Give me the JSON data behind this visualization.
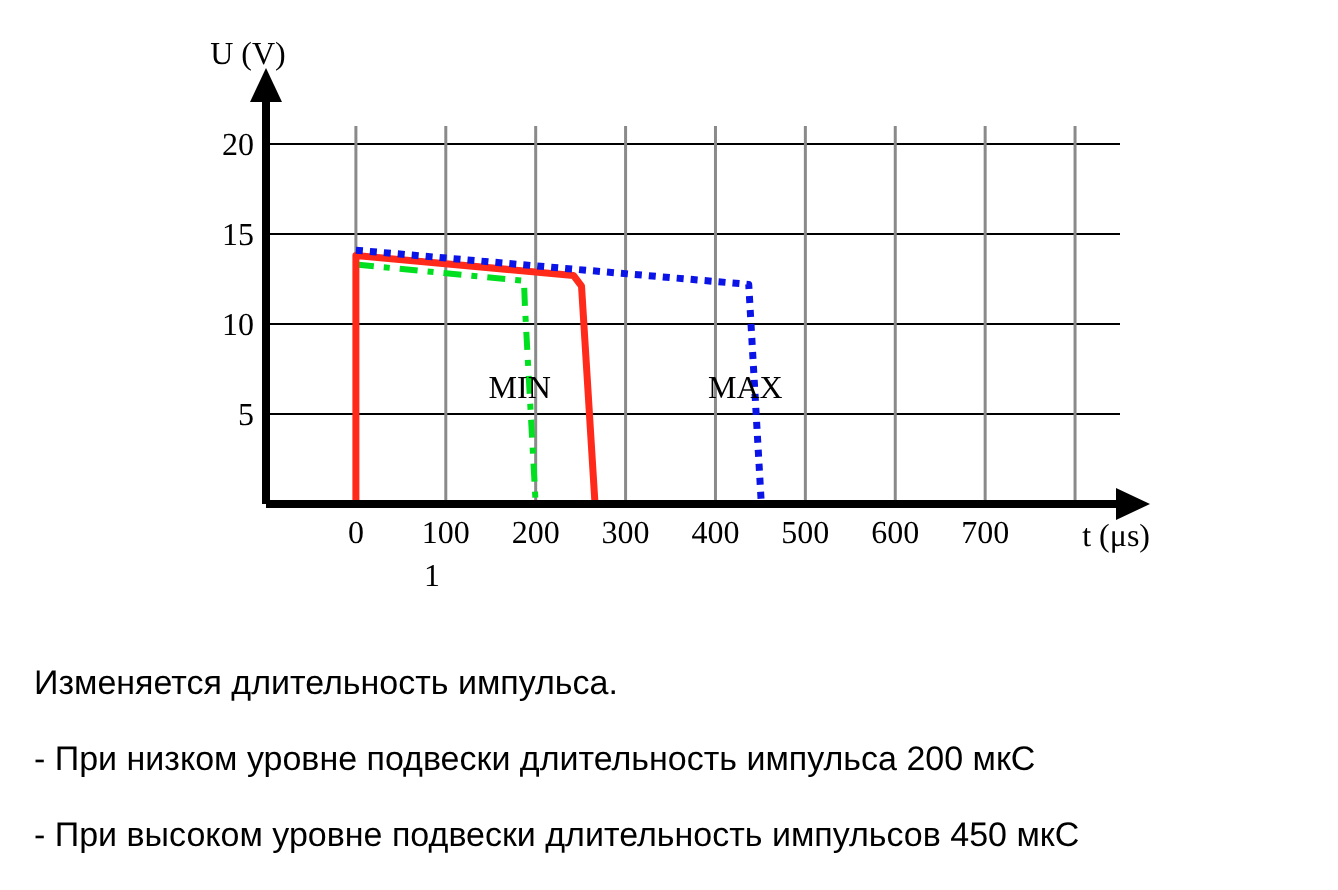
{
  "chart_data": {
    "type": "line",
    "xlabel": "t (μs)",
    "ylabel": "U (V)",
    "xlim": [
      -100,
      850
    ],
    "xticks": [
      0,
      100,
      200,
      300,
      400,
      500,
      600,
      700,
      {
        "value": 800,
        "label": null
      }
    ],
    "ylim": [
      0,
      21
    ],
    "yticks": [
      5,
      10,
      15,
      20
    ],
    "grid": true,
    "series": [
      {
        "name": "MIN",
        "color": "#00e020",
        "line_style": "dashed",
        "x": [
          0,
          187,
          188,
          200
        ],
        "values": [
          13.3,
          12.4,
          11,
          0
        ]
      },
      {
        "color": "#ff2a1a",
        "line_style": "solid",
        "x": [
          0,
          0,
          242,
          251,
          266
        ],
        "values": [
          0,
          13.8,
          12.7,
          12.1,
          0
        ]
      },
      {
        "name": "MAX",
        "color": "#0a14e6",
        "line_style": "dotted",
        "x": [
          0,
          437,
          451
        ],
        "values": [
          14.1,
          12.2,
          0
        ]
      }
    ],
    "annotations": [
      "1",
      "Изменяется длительность импульса.",
      "- При низком уровне подвески длительность импульса 200 мкС",
      "- При высоком уровне подвески длительность импульсов 450 мкС"
    ]
  }
}
